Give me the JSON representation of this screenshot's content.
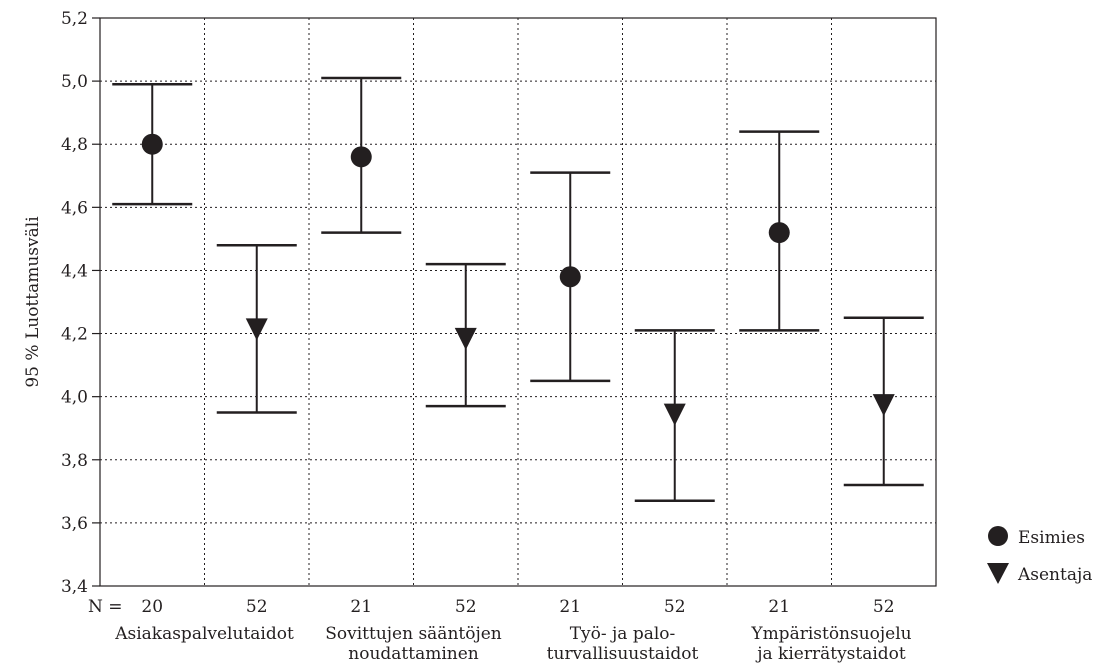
{
  "chart_data": {
    "type": "errorbar",
    "title": "",
    "ylabel": "95 % Luottamusväli",
    "xlabel": "",
    "ylim": [
      3.4,
      5.2
    ],
    "yticks": [
      "3,4",
      "3,6",
      "3,8",
      "4,0",
      "4,2",
      "4,4",
      "4,6",
      "4,8",
      "5,0",
      "5,2"
    ],
    "n_prefix": "N =",
    "grid": true,
    "legend_position": "right",
    "categories": [
      {
        "label_lines": [
          "Asiakaspalvelutaidot"
        ]
      },
      {
        "label_lines": [
          "Sovittujen sääntöjen",
          "noudattaminen"
        ]
      },
      {
        "label_lines": [
          "Työ- ja palo-",
          "turvallisuustaidot"
        ]
      },
      {
        "label_lines": [
          "Ympäristönsuojelu",
          "ja kierrätystaidot"
        ]
      }
    ],
    "series": [
      {
        "name": "Esimies",
        "marker": "circle",
        "n": [
          "20",
          "21",
          "21",
          "21"
        ],
        "mean": [
          4.8,
          4.76,
          4.38,
          4.52
        ],
        "lower": [
          4.61,
          4.52,
          4.05,
          4.21
        ],
        "upper": [
          4.99,
          5.01,
          4.71,
          4.84
        ]
      },
      {
        "name": "Asentaja",
        "marker": "triangle-down",
        "n": [
          "52",
          "52",
          "52",
          "52"
        ],
        "mean": [
          4.21,
          4.18,
          3.94,
          3.97
        ],
        "lower": [
          3.95,
          3.97,
          3.67,
          3.72
        ],
        "upper": [
          4.48,
          4.42,
          4.21,
          4.25
        ]
      }
    ]
  }
}
